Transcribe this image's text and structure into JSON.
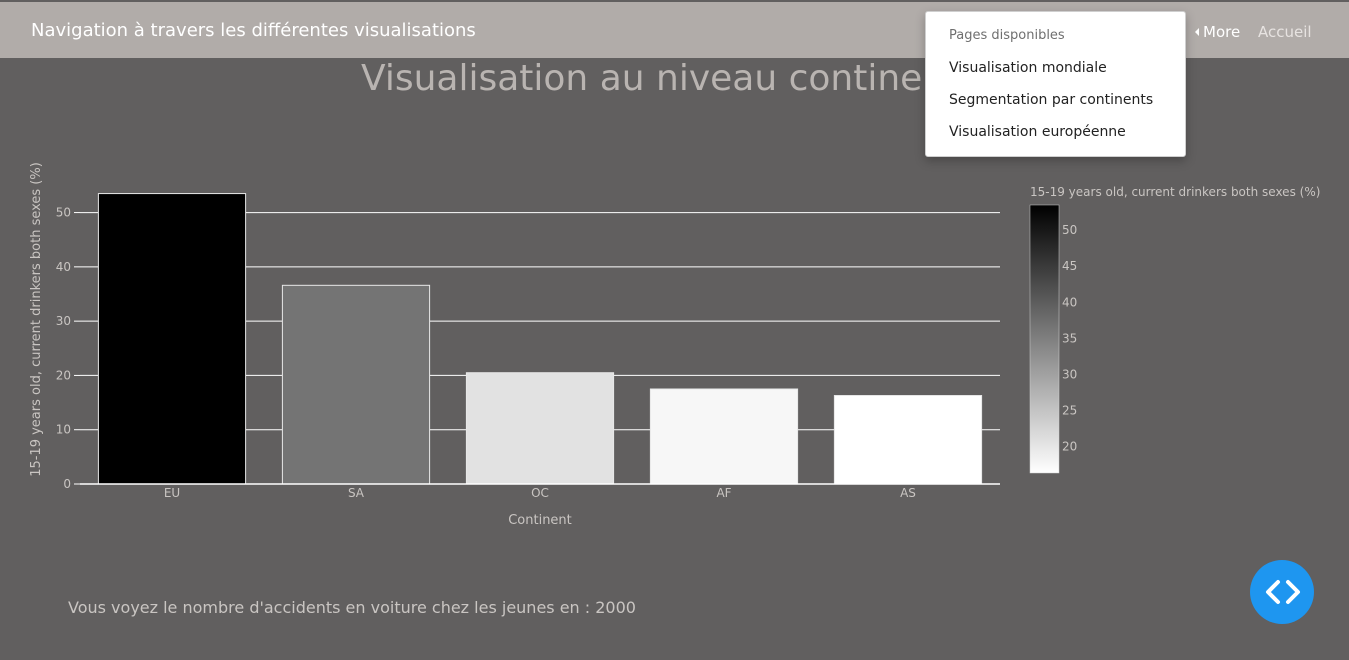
{
  "header": {
    "title": "Navigation à travers les différentes visualisations",
    "more_label": "More",
    "home_label": "Accueil"
  },
  "dropdown": {
    "header": "Pages disponibles",
    "items": [
      "Visualisation mondiale",
      "Segmentation par continents",
      "Visualisation européenne"
    ]
  },
  "page": {
    "title": "Visualisation au niveau continental",
    "footer": "Vous voyez le nombre d'accidents en voiture chez les jeunes en : 2000"
  },
  "colors": {
    "background": "#615f5f",
    "topbar": "#b1aca9",
    "fab": "#1e96f0"
  },
  "icons": {
    "fab": "code-arrows-icon",
    "more": "caret-left-icon"
  },
  "chart_data": {
    "type": "bar",
    "categories": [
      "EU",
      "SA",
      "OC",
      "AF",
      "AS"
    ],
    "values": [
      53.5,
      36.6,
      20.5,
      17.5,
      16.3
    ],
    "xlabel": "Continent",
    "ylabel": "15-19 years old, current drinkers both sexes (%)",
    "ylim": [
      0,
      56
    ],
    "yticks": [
      0,
      10,
      20,
      30,
      40,
      50
    ],
    "grid": true,
    "colorbar": {
      "title": "15-19 years old, current drinkers both sexes (%)",
      "min": 16.3,
      "max": 53.5,
      "ticks": [
        20,
        25,
        30,
        35,
        40,
        45,
        50
      ],
      "colors": [
        "#ffffff",
        "#000000"
      ]
    }
  }
}
